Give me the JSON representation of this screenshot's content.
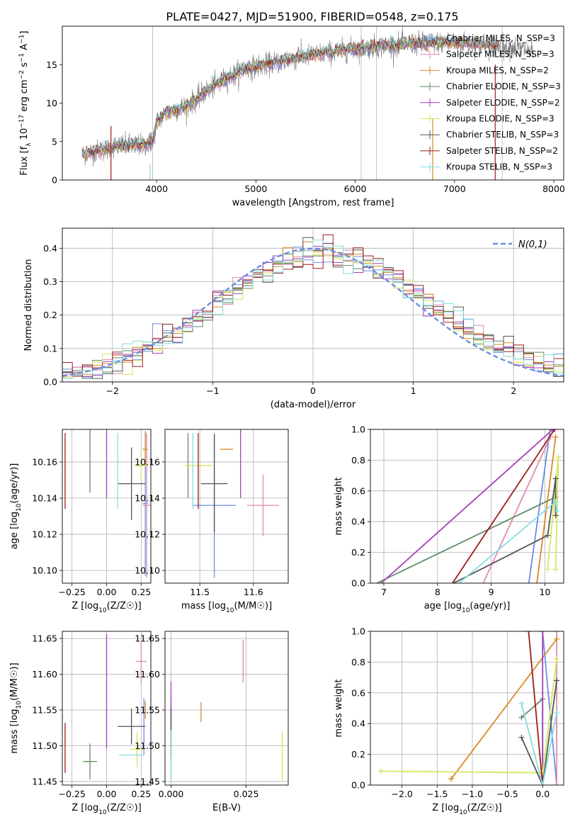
{
  "page_title": "PLATE=0427, MJD=51900, FIBERID=0548, z=0.175",
  "styles": {
    "colors": [
      "#6a8fe0",
      "#e38aae",
      "#d9892a",
      "#5f8c62",
      "#a53fb8",
      "#d7e65f",
      "#555555",
      "#9e1c1c",
      "#86dde0"
    ],
    "gaussian_color": "#6a8fe0",
    "grid": true
  },
  "legend_labels": [
    "Chabrier MILES, N_SSP=3",
    "Salpeter MILES, N_SSP=3",
    "Kroupa MILES, N_SSP=2",
    "Chabrier ELODIE, N_SSP=3",
    "Salpeter ELODIE, N_SSP=2",
    "Kroupa ELODIE, N_SSP=3",
    "Chabrier STELIB, N_SSP=3",
    "Salpeter STELIB, N_SSP=2",
    "Kroupa STELIB, N_SSP=3"
  ],
  "chart_data": [
    {
      "id": "spectrum",
      "type": "line",
      "title": "PLATE=0427, MJD=51900, FIBERID=0548, z=0.175",
      "xlabel": "wavelength [Angstrom, rest frame]",
      "ylabel": "Flux [f_λ 10^-17 erg cm^-2 s^-1 A^-1]",
      "xlim": [
        3050,
        8100
      ],
      "ylim": [
        0,
        20
      ],
      "xticks": [
        4000,
        5000,
        6000,
        7000,
        8000
      ],
      "yticks": [
        0,
        5,
        10,
        15
      ],
      "legend_position": "top-right",
      "continuum": {
        "x": [
          3250,
          3400,
          3500,
          3600,
          3700,
          3800,
          3900,
          3960,
          4000,
          4100,
          4200,
          4300,
          4400,
          4500,
          4700,
          4900,
          5100,
          5300,
          5500,
          5700,
          5900,
          6100,
          6300,
          6500,
          6700,
          6900,
          7100,
          7300,
          7500,
          7700,
          7800
        ],
        "y": [
          3.3,
          3.8,
          4.0,
          4.5,
          4.5,
          4.5,
          4.6,
          5.0,
          7.5,
          8.8,
          9.2,
          9.6,
          10.5,
          11.6,
          13.2,
          14.5,
          15.0,
          15.6,
          16.1,
          16.5,
          16.9,
          17.2,
          17.5,
          17.7,
          17.8,
          17.9,
          17.8,
          17.6,
          17.4,
          17.0,
          16.5
        ]
      },
      "model_region_end": 7450
    },
    {
      "id": "residuals",
      "type": "bar",
      "xlabel": "(data-model)/error",
      "ylabel": "Normed distribution",
      "xlim": [
        -2.5,
        2.5
      ],
      "ylim": [
        0,
        0.46
      ],
      "xticks": [
        -2,
        -1,
        0,
        1,
        2
      ],
      "yticks": [
        0.0,
        0.1,
        0.2,
        0.3,
        0.4
      ],
      "legend": "N(0,1)",
      "bin_width": 0.1
    },
    {
      "id": "age_vs_Z",
      "type": "scatter",
      "xlabel": "Z [log10(Z/Z☉)]",
      "ylabel": "age  [log10(age/yr)]",
      "xlim": [
        -0.32,
        0.32
      ],
      "ylim": [
        10.093,
        10.178
      ],
      "xticks": [
        -0.25,
        0.0,
        0.25
      ],
      "yticks": [
        10.1,
        10.12,
        10.14,
        10.16
      ],
      "points": [
        {
          "x": 0.28,
          "y": 10.137,
          "xerr": 0.02,
          "yerr": 0.04
        },
        {
          "x": 0.29,
          "y": 10.136,
          "xerr": 0.03,
          "yerr": 0.04
        },
        {
          "x": 0.28,
          "y": 10.167,
          "xerr": 0.02,
          "yerr": 0.009
        },
        {
          "x": -0.12,
          "y": 10.165,
          "xerr": 0.0,
          "yerr": 0.022
        },
        {
          "x": 0.0,
          "y": 10.16,
          "xerr": 0.0,
          "yerr": 0.02
        },
        {
          "x": 0.25,
          "y": 10.158,
          "xerr": 0.05,
          "yerr": 0.008
        },
        {
          "x": 0.18,
          "y": 10.148,
          "xerr": 0.1,
          "yerr": 0.02
        },
        {
          "x": -0.3,
          "y": 10.155,
          "xerr": 0.0,
          "yerr": 0.021
        },
        {
          "x": 0.08,
          "y": 10.155,
          "xerr": 0.0,
          "yerr": 0.021
        }
      ]
    },
    {
      "id": "age_vs_mass",
      "type": "scatter",
      "xlabel": "mass [log10(M/M☉)]",
      "ylabel": "",
      "xlim": [
        11.435,
        11.665
      ],
      "ylim": [
        10.093,
        10.178
      ],
      "xticks": [
        11.5,
        11.6
      ],
      "yticks": [
        10.1,
        10.12,
        10.14,
        10.16
      ],
      "points": [
        {
          "x": 11.527,
          "y": 10.136,
          "xerr": 0.04,
          "yerr": 0.04
        },
        {
          "x": 11.618,
          "y": 10.136,
          "xerr": 0.03,
          "yerr": 0.017
        },
        {
          "x": 11.55,
          "y": 10.167,
          "xerr": 0.012,
          "yerr": 0.0
        },
        {
          "x": 11.478,
          "y": 10.158,
          "xerr": 0.0,
          "yerr": 0.018
        },
        {
          "x": 11.576,
          "y": 10.16,
          "xerr": 0.0,
          "yerr": 0.02
        },
        {
          "x": 11.497,
          "y": 10.158,
          "xerr": 0.025,
          "yerr": 0.0
        },
        {
          "x": 11.527,
          "y": 10.148,
          "xerr": 0.025,
          "yerr": 0.027
        },
        {
          "x": 11.497,
          "y": 10.155,
          "xerr": 0.0,
          "yerr": 0.021
        },
        {
          "x": 11.487,
          "y": 10.155,
          "xerr": 0.0,
          "yerr": 0.021
        }
      ]
    },
    {
      "id": "weight_vs_age",
      "type": "line",
      "xlabel": "age  [log10(age/yr)]",
      "ylabel": "mass weight",
      "xlim": [
        6.75,
        10.35
      ],
      "ylim": [
        0,
        1
      ],
      "xticks": [
        7,
        8,
        9,
        10
      ],
      "yticks": [
        0.0,
        0.2,
        0.4,
        0.6,
        0.8,
        1.0
      ],
      "series": [
        {
          "x": [
            9.7,
            10.1
          ],
          "y": [
            0.0,
            1.0
          ]
        },
        {
          "x": [
            8.85,
            10.1
          ],
          "y": [
            0.0,
            0.95
          ]
        },
        {
          "x": [
            9.85,
            10.2
          ],
          "y": [
            0.0,
            0.95
          ]
        },
        {
          "x": [
            6.87,
            10.2
          ],
          "y": [
            0.0,
            0.56
          ]
        },
        {
          "x": [
            6.95,
            10.15
          ],
          "y": [
            0.0,
            1.0
          ]
        },
        {
          "x": [
            10.05,
            10.25,
            10.2
          ],
          "y": [
            0.09,
            0.82,
            0.09
          ]
        },
        {
          "x": [
            8.3,
            10.05,
            10.2,
            10.2
          ],
          "y": [
            0.0,
            0.31,
            0.68,
            0.44
          ]
        },
        {
          "x": [
            8.28,
            10.18
          ],
          "y": [
            0.0,
            1.0
          ]
        },
        {
          "x": [
            8.4,
            10.2,
            10.22
          ],
          "y": [
            0.0,
            0.53,
            0.47
          ]
        }
      ]
    },
    {
      "id": "mass_vs_Z",
      "type": "scatter",
      "xlabel": "Z [log10(Z/Z☉)]",
      "ylabel": "mass [log10(M/M☉)]",
      "xlim": [
        -0.32,
        0.32
      ],
      "ylim": [
        11.445,
        11.66
      ],
      "xticks": [
        -0.25,
        0.0,
        0.25
      ],
      "yticks": [
        11.45,
        11.5,
        11.55,
        11.6,
        11.65
      ],
      "points": [
        {
          "x": 0.27,
          "y": 11.527,
          "xerr": 0.0,
          "yerr": 0.04
        },
        {
          "x": 0.25,
          "y": 11.618,
          "xerr": 0.04,
          "yerr": 0.03
        },
        {
          "x": 0.28,
          "y": 11.55,
          "xerr": 0.0,
          "yerr": 0.012
        },
        {
          "x": -0.12,
          "y": 11.478,
          "xerr": 0.05,
          "yerr": 0.025
        },
        {
          "x": 0.0,
          "y": 11.576,
          "xerr": 0.0,
          "yerr": 0.08
        },
        {
          "x": 0.22,
          "y": 11.495,
          "xerr": 0.05,
          "yerr": 0.025
        },
        {
          "x": 0.18,
          "y": 11.527,
          "xerr": 0.1,
          "yerr": 0.025
        },
        {
          "x": -0.3,
          "y": 11.497,
          "xerr": 0.0,
          "yerr": 0.035
        },
        {
          "x": 0.18,
          "y": 11.487,
          "xerr": 0.09,
          "yerr": 0.0
        }
      ]
    },
    {
      "id": "mass_vs_EBV",
      "type": "scatter",
      "xlabel": "E(B-V)",
      "ylabel": "",
      "xlim": [
        -0.002,
        0.039
      ],
      "ylim": [
        11.445,
        11.66
      ],
      "xticks": [
        0.0,
        0.025
      ],
      "yticks": [
        11.45,
        11.5,
        11.55,
        11.6,
        11.65
      ],
      "points": [
        {
          "x": 0.0,
          "y": 11.527,
          "xerr": 0.0,
          "yerr": 0.04
        },
        {
          "x": 0.024,
          "y": 11.618,
          "xerr": 0.0,
          "yerr": 0.03
        },
        {
          "x": 0.01,
          "y": 11.547,
          "xerr": 0.0,
          "yerr": 0.014
        },
        {
          "x": 0.0,
          "y": 11.478,
          "xerr": 0.0,
          "yerr": 0.025
        },
        {
          "x": 0.0,
          "y": 11.55,
          "xerr": 0.0,
          "yerr": 0.04
        },
        {
          "x": 0.037,
          "y": 11.485,
          "xerr": 0.0,
          "yerr": 0.035
        },
        {
          "x": 0.0,
          "y": 11.527,
          "xerr": 0.0,
          "yerr": 0.025
        },
        {
          "x": 0.0,
          "y": 11.497,
          "xerr": 0.0,
          "yerr": 0.015
        },
        {
          "x": 0.0,
          "y": 11.487,
          "xerr": 0.0,
          "yerr": 0.035
        }
      ]
    },
    {
      "id": "weight_vs_Z",
      "type": "line",
      "xlabel": "Z [log10(Z/Z☉)]",
      "ylabel": "mass weight",
      "xlim": [
        -2.45,
        0.3
      ],
      "ylim": [
        0,
        1
      ],
      "xticks": [
        -2.0,
        -1.5,
        -1.0,
        -0.5,
        0.0
      ],
      "yticks": [
        0.0,
        0.2,
        0.4,
        0.6,
        0.8,
        1.0
      ],
      "series": [
        {
          "x": [
            0.0,
            0.2
          ],
          "y": [
            1.0,
            0.0
          ]
        },
        {
          "x": [
            0.2,
            0.2
          ],
          "y": [
            0.0,
            1.0
          ]
        },
        {
          "x": [
            -1.3,
            0.2
          ],
          "y": [
            0.04,
            0.95
          ]
        },
        {
          "x": [
            -0.3,
            0.0,
            0.0
          ],
          "y": [
            0.44,
            0.56,
            0.0
          ]
        },
        {
          "x": [
            0.0,
            0.0
          ],
          "y": [
            0.0,
            1.0
          ]
        },
        {
          "x": [
            -2.3,
            0.0,
            0.2
          ],
          "y": [
            0.09,
            0.08,
            0.82
          ]
        },
        {
          "x": [
            -0.3,
            0.0,
            0.2
          ],
          "y": [
            0.31,
            0.0,
            0.68
          ]
        },
        {
          "x": [
            -0.2,
            0.0
          ],
          "y": [
            1.0,
            0.0
          ]
        },
        {
          "x": [
            -0.3,
            0.0,
            0.2
          ],
          "y": [
            0.53,
            0.0,
            0.47
          ]
        }
      ]
    }
  ]
}
